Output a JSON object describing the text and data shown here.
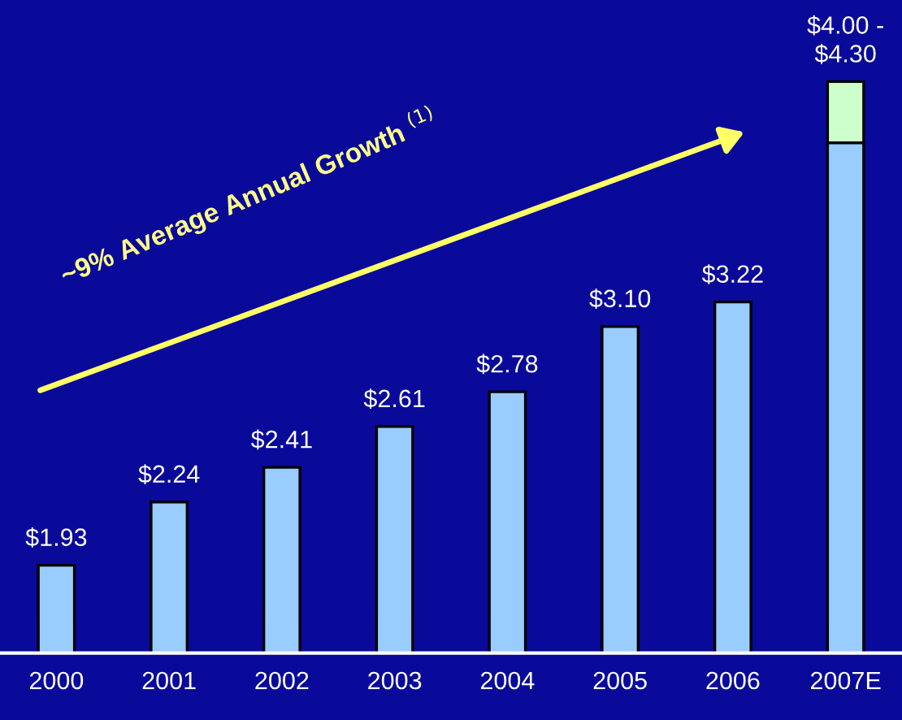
{
  "chart_data": {
    "type": "bar",
    "categories": [
      "2000",
      "2001",
      "2002",
      "2003",
      "2004",
      "2005",
      "2006",
      "2007E"
    ],
    "ylim": [
      1.5,
      4.7
    ],
    "grid": false,
    "legend": false,
    "series": [
      {
        "color": "#ccffcc",
        "values": [
          null,
          null,
          null,
          null,
          null,
          null,
          null,
          4.3
        ],
        "value_labels": [
          null,
          null,
          null,
          null,
          null,
          null,
          null,
          "$4.00 -\n$4.30"
        ]
      },
      {
        "color": "#99ccff",
        "values": [
          1.93,
          2.24,
          2.41,
          2.61,
          2.78,
          3.1,
          3.22,
          4.0
        ],
        "value_labels": [
          "$1.93",
          "$2.24",
          "$2.41",
          "$2.61",
          "$2.78",
          "$3.10",
          "$3.22",
          null
        ]
      }
    ],
    "annotations": [
      "~9% Average Annual Growth $^{(1)}$"
    ]
  }
}
